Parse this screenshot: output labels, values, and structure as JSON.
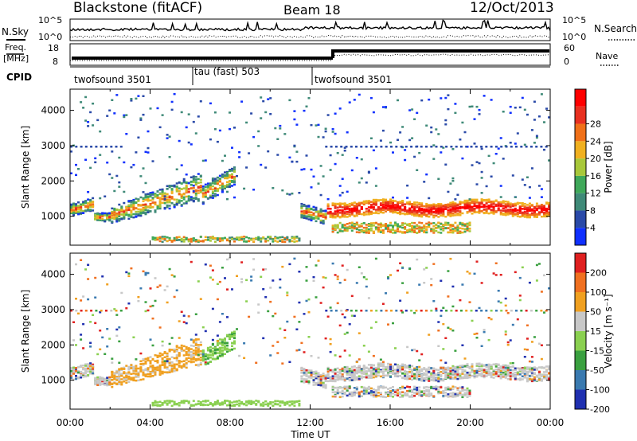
{
  "header": {
    "station": "Blackstone (fitACF)",
    "beam": "Beam 18",
    "date": "12/Oct/2013"
  },
  "noise_panel": {
    "left_label": "N.Sky",
    "right_label": "N.Search",
    "ticks_left": [
      "10^5",
      "10^0"
    ],
    "ticks_right": [
      "10^5",
      "10^0"
    ]
  },
  "freq_panel": {
    "left_label_1": "Freq.",
    "left_label_2": "[MHz]",
    "ticks_left": [
      "18",
      "8"
    ],
    "ticks_right": [
      "60",
      "0"
    ],
    "right_label": "Nave"
  },
  "cpid_panel": {
    "label": "CPID",
    "segments": [
      {
        "label": "twofsound 3501",
        "start_hour": 0
      },
      {
        "label": "tau (fast) 503",
        "start_hour": 6
      },
      {
        "label": "twofsound 3501",
        "start_hour": 12
      }
    ]
  },
  "chart_data": [
    {
      "type": "heatmap",
      "panel": "power",
      "ylabel": "Slant Range [km]",
      "yticks": [
        "1000",
        "2000",
        "3000",
        "4000"
      ],
      "xlim_hours": [
        0,
        24
      ],
      "ylim_km": [
        180,
        4600
      ],
      "colorbar": {
        "label": "Power [dB]",
        "ticks": [
          "4",
          "8",
          "12",
          "16",
          "20",
          "24",
          "28"
        ],
        "colors": [
          "#1030ff",
          "#2a4aa8",
          "#3f8a78",
          "#3fa85a",
          "#a8c83a",
          "#f0b020",
          "#f07018",
          "#e83020",
          "#ff0000"
        ]
      }
    },
    {
      "type": "heatmap",
      "panel": "velocity",
      "ylabel": "Slant Range [km]",
      "yticks": [
        "1000",
        "2000",
        "3000",
        "4000"
      ],
      "xlim_hours": [
        0,
        24
      ],
      "ylim_km": [
        180,
        4600
      ],
      "colorbar": {
        "label": "Velocity [m s⁻¹]",
        "ticks": [
          "200",
          "100",
          "50",
          "15",
          "-15",
          "-50",
          "-100",
          "-200"
        ],
        "colors": [
          "#2030b0",
          "#3a7ab0",
          "#3aa040",
          "#8ad050",
          "#c8c8c8",
          "#f0a020",
          "#f07020",
          "#e02020"
        ]
      }
    }
  ],
  "time_axis": {
    "ticks": [
      "00:00",
      "04:00",
      "08:00",
      "12:00",
      "16:00",
      "20:00",
      "00:00"
    ],
    "label": "Time UT"
  }
}
